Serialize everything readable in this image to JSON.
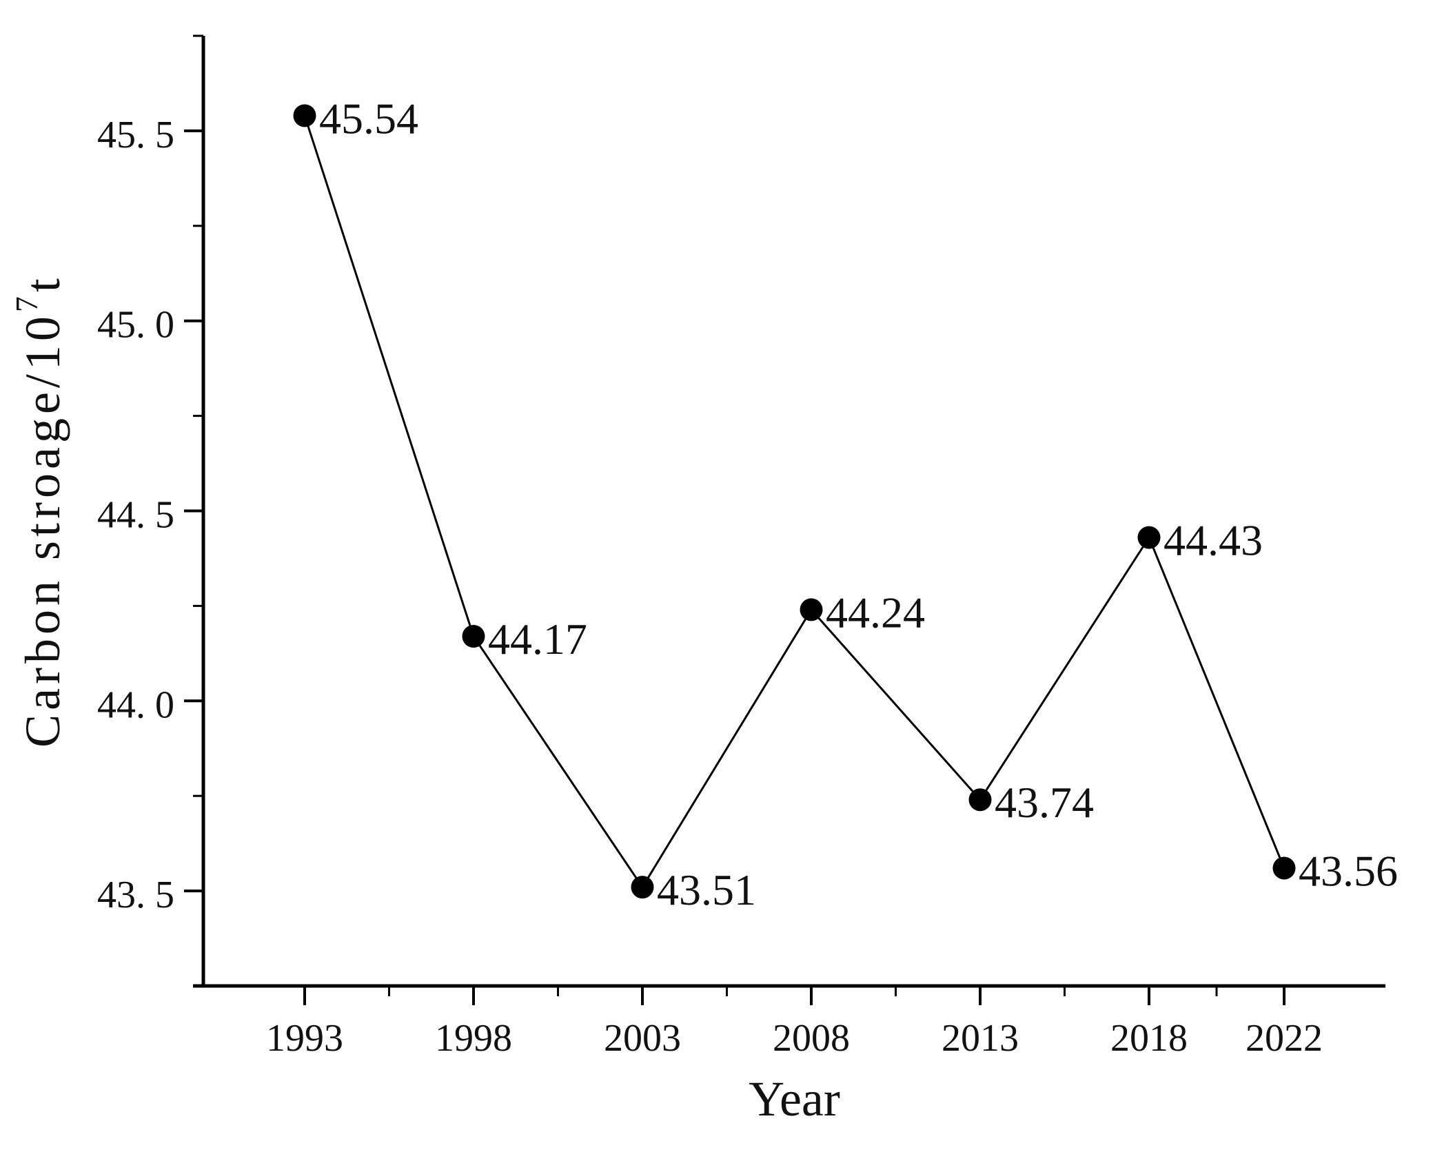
{
  "chart_data": {
    "type": "line",
    "title": "",
    "xlabel": "Year",
    "ylabel": "Carbon stroage/10⁷t",
    "ylabel_rich": {
      "base": "Carbon stroage/10",
      "superscript": "7",
      "suffix": "t"
    },
    "x": [
      1993,
      1998,
      2003,
      2008,
      2013,
      2018,
      2022
    ],
    "categories": [
      "1993",
      "1998",
      "2003",
      "2008",
      "2013",
      "2018",
      "2022"
    ],
    "values": [
      45.54,
      44.17,
      43.51,
      44.24,
      43.74,
      44.43,
      43.56
    ],
    "point_labels": [
      "45.54",
      "44.17",
      "43.51",
      "44.24",
      "43.74",
      "44.43",
      "43.56"
    ],
    "series_name": "Carbon storage",
    "xlim": [
      1990,
      2025
    ],
    "ylim": [
      43.25,
      45.75
    ],
    "y_major_ticks": [
      43.5,
      44.0,
      44.5,
      45.0,
      45.5
    ],
    "y_major_tick_labels": [
      "43. 5",
      "44. 0",
      "44. 5",
      "45. 0",
      "45. 5"
    ],
    "y_minor_ticks": [
      43.75,
      44.25,
      44.75,
      45.25,
      45.75
    ],
    "x_minor_ticks": [
      1995.5,
      2000.5,
      2005.5,
      2010.5,
      2015.5,
      2020
    ],
    "grid": false,
    "legend": null,
    "marker": "filled-circle",
    "line_style": "solid",
    "colors": {
      "line": "#000000",
      "marker": "#000000",
      "axis": "#000000",
      "text": "#111111",
      "background": "#ffffff"
    }
  }
}
